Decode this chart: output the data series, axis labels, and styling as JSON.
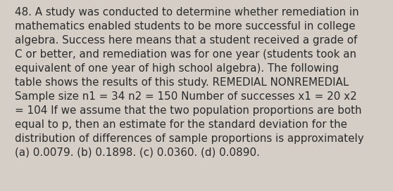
{
  "background_color": "#d4cec6",
  "text_color": "#2b2b2b",
  "font_size": 10.9,
  "font_family": "DejaVu Sans",
  "lines": [
    "48. A study was conducted to determine whether remediation in",
    "mathematics enabled students to be more successful in college",
    "algebra. Success here means that a student received a grade of",
    "C or better, and remediation was for one year (students took an",
    "equivalent of one year of high school algebra). The following",
    "table shows the results of this study. REMEDIAL NONREMEDIAL",
    "Sample size n1 = 34 n2 = 150 Number of successes x1 = 20 x2",
    "= 104 If we assume that the two population proportions are both",
    "equal to p, then an estimate for the standard deviation for the",
    "distribution of differences of sample proportions is approximately",
    "(a) 0.0079. (b) 0.1898. (c) 0.0360. (d) 0.0890."
  ],
  "figsize": [
    5.58,
    2.72
  ],
  "dpi": 100
}
